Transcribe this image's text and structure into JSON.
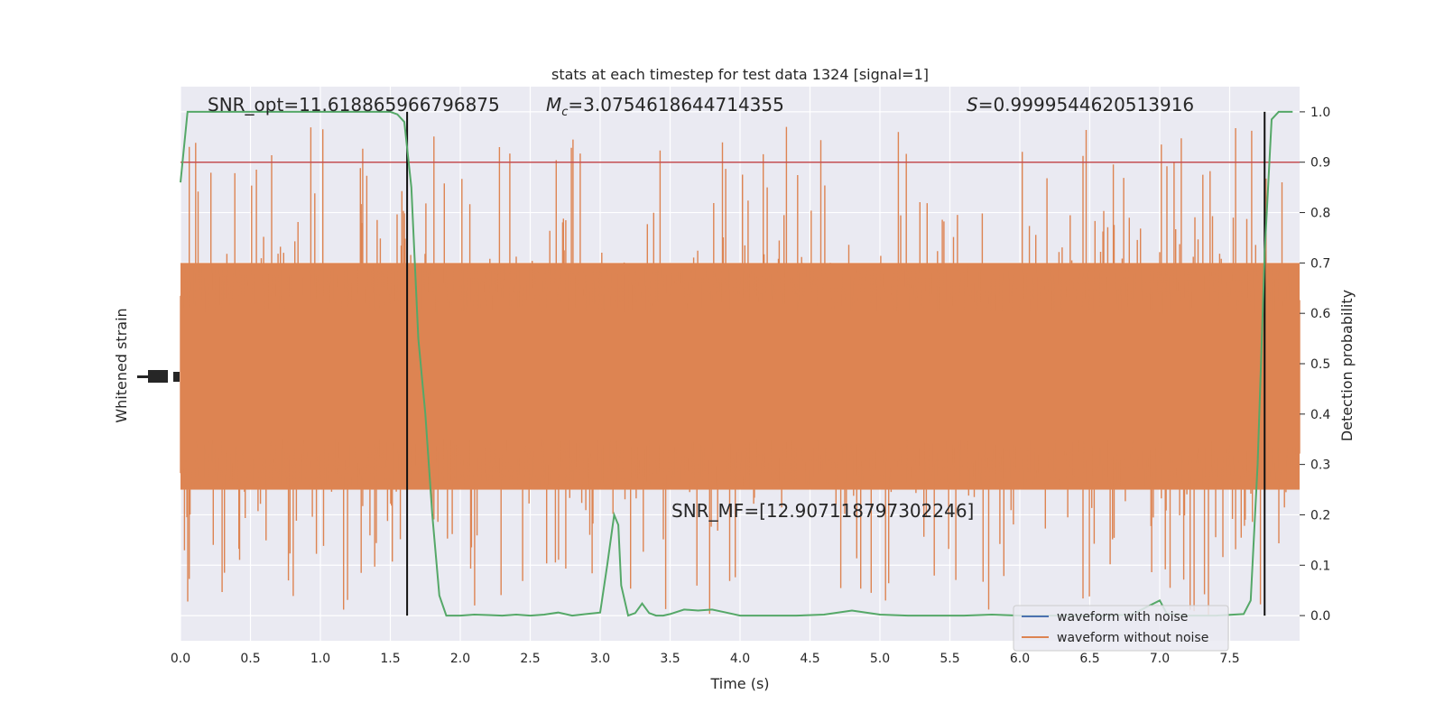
{
  "chart_data": {
    "type": "line",
    "title": "stats at each timestep for test data 1324 [signal=1]",
    "xlabel": "Time (s)",
    "ylabel_left": "Whitened strain",
    "ylabel_right": "Detection probability",
    "xlim": [
      0,
      8
    ],
    "ylim_right": [
      -0.05,
      1.05
    ],
    "x_ticks": [
      "0.0",
      "0.5",
      "1.0",
      "1.5",
      "2.0",
      "2.5",
      "3.0",
      "3.5",
      "4.0",
      "4.5",
      "5.0",
      "5.5",
      "6.0",
      "6.5",
      "7.0",
      "7.5"
    ],
    "y_right_ticks": [
      "0.0",
      "0.1",
      "0.2",
      "0.3",
      "0.4",
      "0.5",
      "0.6",
      "0.7",
      "0.8",
      "0.9",
      "1.0"
    ],
    "grid": true,
    "annotations": {
      "snr_opt": "SNR_opt=11.618865966796875",
      "mc_symbol": "M",
      "mc_sub": "c",
      "mc_value": "=3.0754618644714355",
      "s_symbol": "S",
      "s_value": "=0.9999544620513916",
      "snr_mf": "SNR_MF=[12.907118797302246]"
    },
    "threshold": 0.9,
    "vlines_x": [
      1.62,
      7.75
    ],
    "legend": {
      "position": "lower right",
      "entries": [
        {
          "label": "waveform with noise",
          "color": "#4c72b0"
        },
        {
          "label": "waveform without noise",
          "color": "#dd8452"
        }
      ]
    },
    "series": [
      {
        "role": "detection_probability",
        "color": "#55a868",
        "x": [
          0.0,
          0.05,
          0.1,
          0.2,
          0.3,
          0.5,
          0.7,
          0.9,
          1.1,
          1.3,
          1.5,
          1.55,
          1.6,
          1.65,
          1.7,
          1.75,
          1.8,
          1.85,
          1.9,
          1.95,
          2.0,
          2.1,
          2.2,
          2.3,
          2.4,
          2.5,
          2.6,
          2.7,
          2.8,
          2.9,
          3.0,
          3.05,
          3.1,
          3.13,
          3.15,
          3.2,
          3.25,
          3.3,
          3.35,
          3.4,
          3.45,
          3.5,
          3.6,
          3.7,
          3.8,
          3.9,
          4.0,
          4.2,
          4.4,
          4.6,
          4.8,
          5.0,
          5.2,
          5.4,
          5.6,
          5.8,
          6.0,
          6.2,
          6.4,
          6.6,
          6.8,
          7.0,
          7.05,
          7.2,
          7.4,
          7.6,
          7.65,
          7.7,
          7.75,
          7.8,
          7.85,
          7.9,
          7.95
        ],
        "y": [
          0.86,
          1.0,
          1.0,
          1.0,
          1.0,
          1.0,
          1.0,
          1.0,
          1.0,
          1.0,
          1.0,
          0.995,
          0.98,
          0.85,
          0.55,
          0.4,
          0.2,
          0.04,
          0.0,
          0.0,
          0.0,
          0.002,
          0.001,
          0.0,
          0.002,
          0.0,
          0.002,
          0.006,
          0.0,
          0.003,
          0.006,
          0.1,
          0.2,
          0.18,
          0.06,
          0.0,
          0.005,
          0.024,
          0.005,
          0.0,
          0.0,
          0.003,
          0.012,
          0.01,
          0.012,
          0.006,
          0.0,
          0.0,
          0.0,
          0.002,
          0.01,
          0.002,
          0.0,
          0.0,
          0.0,
          0.002,
          0.0,
          0.0,
          0.0,
          0.0,
          0.002,
          0.03,
          0.004,
          0.0,
          0.0,
          0.003,
          0.03,
          0.3,
          0.72,
          0.985,
          1.0,
          1.0,
          1.0
        ]
      },
      {
        "role": "waveform_without_noise",
        "name": "waveform without noise",
        "color": "#dd8452",
        "note_units": "detection-probability axis units (visual band)",
        "band_low": 0.25,
        "band_high": 0.7,
        "spike_high": 0.975,
        "spike_low": 0.0
      }
    ]
  }
}
